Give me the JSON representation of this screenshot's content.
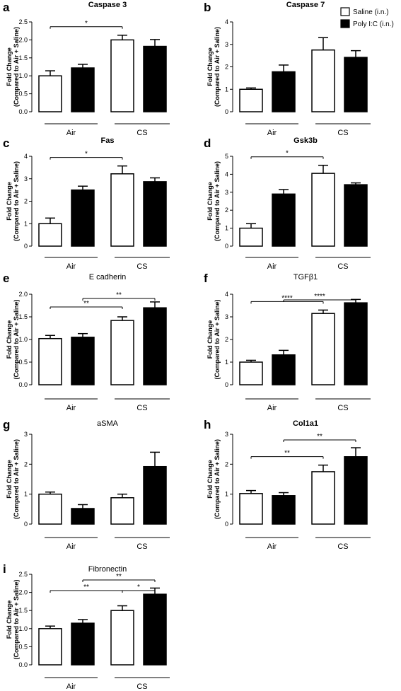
{
  "legend": {
    "items": [
      {
        "label": "Saline (i.n.)",
        "fill": "#ffffff"
      },
      {
        "label": "Poly I:C (i.n.)",
        "fill": "#000000"
      }
    ]
  },
  "groups": [
    "Air",
    "CS"
  ],
  "chart_data": [
    {
      "panel": "a",
      "type": "bar",
      "title": "Caspase 3",
      "title_bold": true,
      "ylabel_lines": [
        "Fold Change",
        "(Compared to Air + Saline)"
      ],
      "ylim": [
        0,
        2.5
      ],
      "yticks": [
        "0.0",
        "0.5",
        "1.0",
        "1.5",
        "2.0",
        "2.5"
      ],
      "values": [
        1.0,
        1.22,
        2.0,
        1.82
      ],
      "errors": [
        0.14,
        0.1,
        0.13,
        0.19
      ],
      "significance": [
        {
          "from": 0,
          "to": 2,
          "label": "*"
        }
      ]
    },
    {
      "panel": "b",
      "type": "bar",
      "title": "Caspase 7",
      "title_bold": true,
      "ylabel_lines": [
        "Fold Change",
        "(Compared to Air + Saline)"
      ],
      "ylim": [
        0,
        4
      ],
      "yticks": [
        "0",
        "1",
        "2",
        "3",
        "4"
      ],
      "values": [
        1.0,
        1.78,
        2.75,
        2.42
      ],
      "errors": [
        0.06,
        0.3,
        0.55,
        0.3
      ],
      "significance": []
    },
    {
      "panel": "c",
      "type": "bar",
      "title": "Fas",
      "title_bold": true,
      "ylabel_lines": [
        "Fold Change",
        "(Compared to Air + Saline)"
      ],
      "ylim": [
        0,
        4
      ],
      "yticks": [
        "0",
        "1",
        "2",
        "3",
        "4"
      ],
      "values": [
        1.0,
        2.5,
        3.22,
        2.87
      ],
      "errors": [
        0.25,
        0.17,
        0.35,
        0.17
      ],
      "significance": [
        {
          "from": 0,
          "to": 2,
          "label": "*"
        }
      ]
    },
    {
      "panel": "d",
      "type": "bar",
      "title": "Gsk3b",
      "title_bold": true,
      "ylabel_lines": [
        "Fold Change",
        "(Compared to Air + Saline)"
      ],
      "ylim": [
        0,
        5
      ],
      "yticks": [
        "0",
        "1",
        "2",
        "3",
        "4",
        "5"
      ],
      "values": [
        1.0,
        2.9,
        4.05,
        3.42
      ],
      "errors": [
        0.25,
        0.25,
        0.45,
        0.1
      ],
      "significance": [
        {
          "from": 0,
          "to": 2,
          "label": "*"
        }
      ]
    },
    {
      "panel": "e",
      "type": "bar",
      "title": "E cadherin",
      "title_bold": false,
      "ylabel_lines": [
        "Fold Change",
        "(Compared to Air + Saline)"
      ],
      "ylim": [
        0,
        2.0
      ],
      "yticks": [
        "0.0",
        "0.5",
        "1.0",
        "1.5",
        "2.0"
      ],
      "values": [
        1.02,
        1.05,
        1.42,
        1.7
      ],
      "errors": [
        0.07,
        0.08,
        0.08,
        0.13
      ],
      "significance": [
        {
          "from": 0,
          "to": 2,
          "label": "**"
        },
        {
          "from": 1,
          "to": 3,
          "label": "**"
        }
      ]
    },
    {
      "panel": "f",
      "type": "bar",
      "title": "TGFβ1",
      "title_bold": false,
      "ylabel_lines": [
        "Fold Change",
        "(Compared to Air + Saline)"
      ],
      "ylim": [
        0,
        4
      ],
      "yticks": [
        "0",
        "1",
        "2",
        "3",
        "4"
      ],
      "values": [
        1.0,
        1.32,
        3.15,
        3.62
      ],
      "errors": [
        0.08,
        0.2,
        0.15,
        0.15
      ],
      "significance": [
        {
          "from": 0,
          "to": 2,
          "label": "****"
        },
        {
          "from": 1,
          "to": 3,
          "label": "****"
        }
      ]
    },
    {
      "panel": "g",
      "type": "bar",
      "title": "aSMA",
      "title_bold": false,
      "ylabel_lines": [
        "Fold Change",
        "(Compared to Air + Saline)"
      ],
      "ylim": [
        0,
        3
      ],
      "yticks": [
        "0",
        "1",
        "2",
        "3"
      ],
      "values": [
        1.0,
        0.52,
        0.88,
        1.92
      ],
      "errors": [
        0.07,
        0.13,
        0.12,
        0.48
      ],
      "significance": []
    },
    {
      "panel": "h",
      "type": "bar",
      "title": "Col1a1",
      "title_bold": true,
      "ylabel_lines": [
        "Fold Change",
        "(Compared to Air + Saline)"
      ],
      "ylim": [
        0,
        3
      ],
      "yticks": [
        "0",
        "1",
        "2",
        "3"
      ],
      "values": [
        1.02,
        0.95,
        1.75,
        2.25
      ],
      "errors": [
        0.1,
        0.1,
        0.22,
        0.3
      ],
      "significance": [
        {
          "from": 0,
          "to": 2,
          "label": "**"
        },
        {
          "from": 1,
          "to": 3,
          "label": "**"
        }
      ]
    },
    {
      "panel": "i",
      "type": "bar",
      "title": "Fibronectin",
      "title_bold": false,
      "ylabel_lines": [
        "Fold Change",
        "(Compared to Air + Saline)"
      ],
      "ylim": [
        0,
        2.5
      ],
      "yticks": [
        "0.0",
        "0.5",
        "1.0",
        "1.5",
        "2.0",
        "2.5"
      ],
      "values": [
        1.0,
        1.15,
        1.5,
        1.95
      ],
      "errors": [
        0.07,
        0.1,
        0.13,
        0.17
      ],
      "significance": [
        {
          "from": 0,
          "to": 2,
          "label": "**"
        },
        {
          "from": 2,
          "to": 3,
          "label": "*"
        },
        {
          "from": 1,
          "to": 3,
          "label": "**"
        }
      ]
    }
  ]
}
